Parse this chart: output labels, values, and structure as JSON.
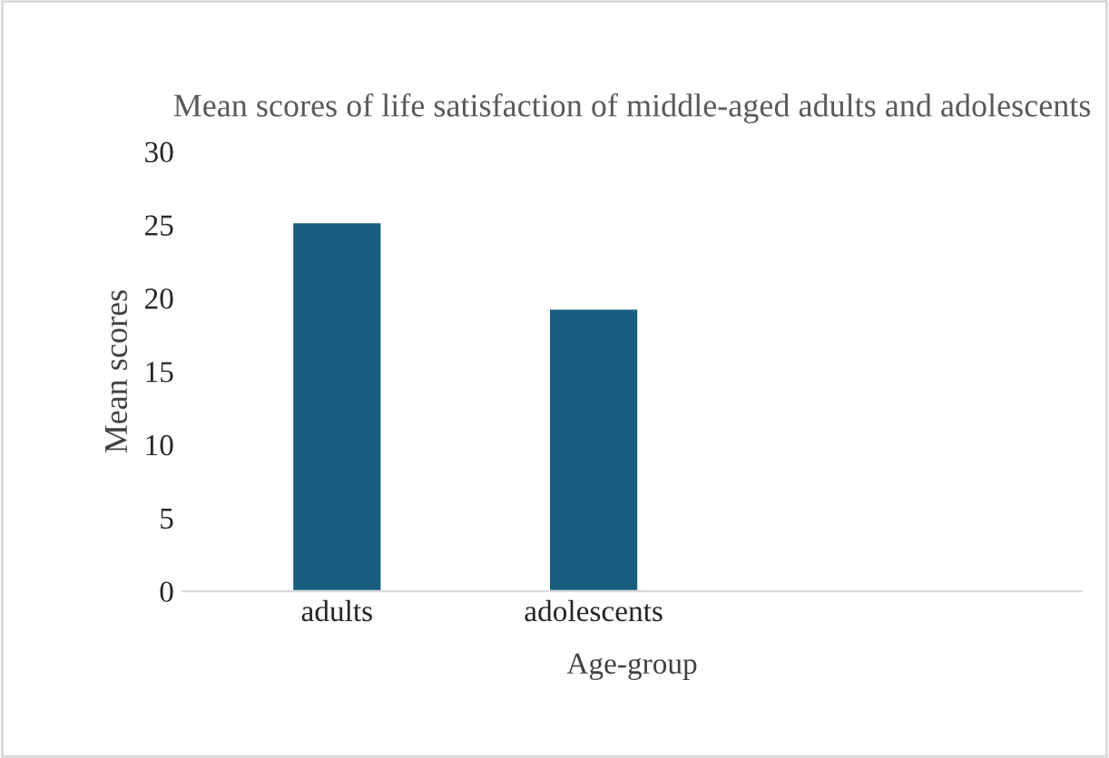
{
  "chart_data": {
    "type": "bar",
    "title": "Mean scores of life satisfaction of middle-aged adults and adolescents",
    "xlabel": "Age-group",
    "ylabel": "Mean scores",
    "categories": [
      "adults",
      "adolescents",
      null
    ],
    "values": [
      25.2,
      19.3,
      null
    ],
    "color": "#175e7e",
    "ylim": [
      0,
      30
    ],
    "yticks": [
      0,
      5,
      10,
      15,
      20,
      25,
      30
    ],
    "grid": false,
    "legend": false
  }
}
